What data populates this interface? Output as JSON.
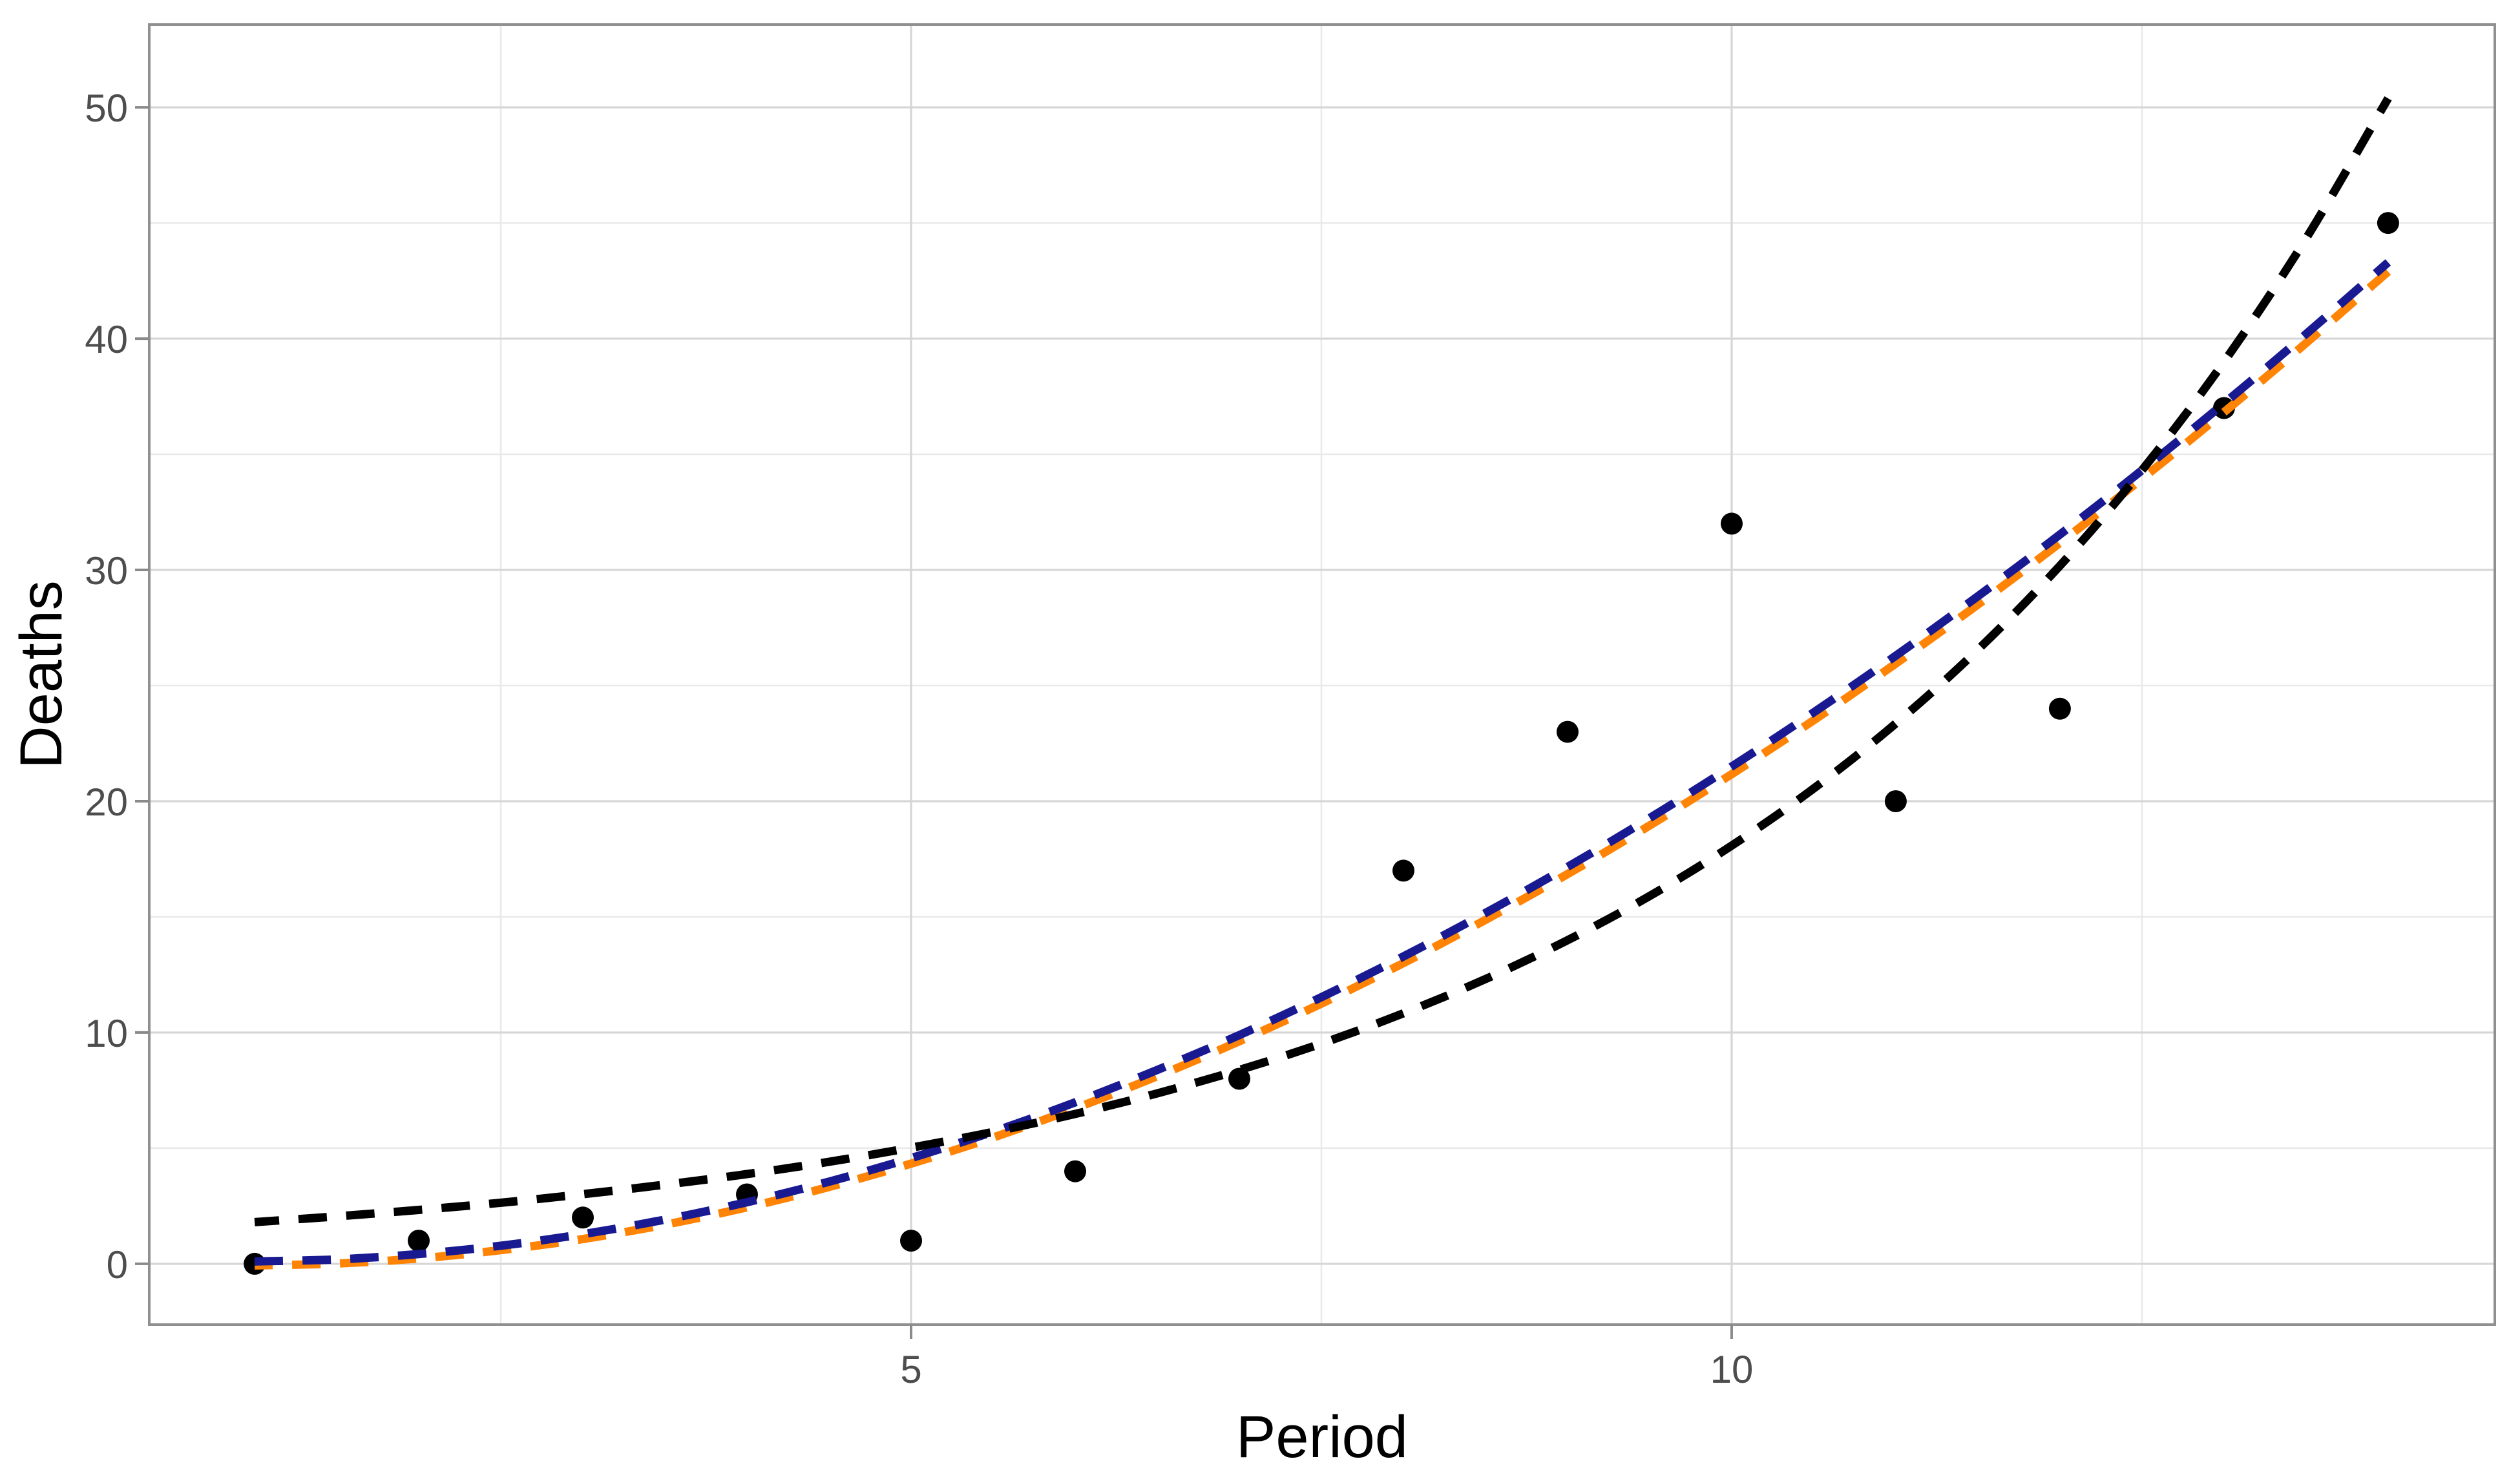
{
  "chart_data": {
    "type": "scatter",
    "title": "",
    "xlabel": "Period",
    "ylabel": "Deaths",
    "legend": "none",
    "grid": "major+minor",
    "xlim": [
      0.358,
      14.65
    ],
    "ylim": [
      -2.63,
      53.58
    ],
    "x_tick_values": [
      5,
      10
    ],
    "x_tick_labels": [
      "5",
      "10"
    ],
    "x_minor_ticks": [
      2.5,
      7.5,
      12.5
    ],
    "y_tick_values": [
      0,
      10,
      20,
      30,
      40,
      50
    ],
    "y_tick_labels": [
      "0",
      "10",
      "20",
      "30",
      "40",
      "50"
    ],
    "y_minor_ticks": [
      5,
      15,
      25,
      35,
      45
    ],
    "points": {
      "name": "observed-deaths",
      "color": "#000000",
      "x": [
        1,
        2,
        3,
        4,
        5,
        6,
        7,
        8,
        9,
        10,
        11,
        12,
        13,
        14
      ],
      "y": [
        0,
        1,
        2,
        3,
        1,
        4,
        8,
        17,
        23,
        32,
        20,
        24,
        37,
        45
      ]
    },
    "curve_x": [
      1,
      1.5,
      2,
      2.5,
      3,
      3.5,
      4,
      4.5,
      5,
      5.5,
      6,
      6.5,
      7,
      7.5,
      8,
      8.5,
      9,
      9.5,
      10,
      10.5,
      11,
      11.5,
      12,
      12.5,
      13,
      13.5,
      14
    ],
    "series": [
      {
        "name": "fit-orange-dashed",
        "color": "#ff8405",
        "linestyle": "dashed",
        "dashoffset": 16,
        "y": [
          -0.07,
          0.01,
          0.23,
          0.59,
          1.07,
          1.69,
          2.44,
          3.32,
          4.33,
          5.46,
          6.72,
          8.11,
          9.62,
          11.25,
          13.0,
          14.87,
          16.85,
          18.95,
          21.17,
          23.5,
          25.95,
          28.5,
          31.17,
          33.94,
          36.82,
          39.81,
          42.9
        ]
      },
      {
        "name": "fit-blue-dashed",
        "color": "#191992",
        "linestyle": "dashed",
        "dashoffset": 0,
        "y": [
          0.1,
          0.19,
          0.42,
          0.78,
          1.28,
          1.91,
          2.66,
          3.55,
          4.57,
          5.71,
          6.98,
          8.38,
          9.89,
          11.53,
          13.29,
          15.17,
          17.16,
          19.27,
          21.5,
          23.84,
          26.29,
          28.86,
          31.53,
          34.31,
          37.2,
          40.2,
          43.3
        ]
      },
      {
        "name": "fit-black-exponential-dashed",
        "color": "#000000",
        "linestyle": "dashed",
        "dashoffset": 6,
        "y": [
          1.8,
          2.05,
          2.33,
          2.64,
          3.01,
          3.42,
          3.88,
          4.41,
          5.02,
          5.7,
          6.48,
          7.37,
          8.38,
          9.52,
          10.83,
          12.31,
          13.99,
          15.9,
          18.08,
          20.55,
          23.36,
          26.55,
          30.18,
          34.31,
          39.0,
          44.33,
          50.39
        ]
      }
    ],
    "style": {
      "background": "#ffffff",
      "panel_border": "#909090",
      "major_grid": "#d6d6d6",
      "minor_grid": "#e9e9e9",
      "tick_color": "#8a8a8a",
      "tick_label_color": "#4d4d4d",
      "title_color": "#000000",
      "point_radius": 17,
      "curve_width": 13,
      "dash_on": 44,
      "dash_off": 30
    }
  }
}
